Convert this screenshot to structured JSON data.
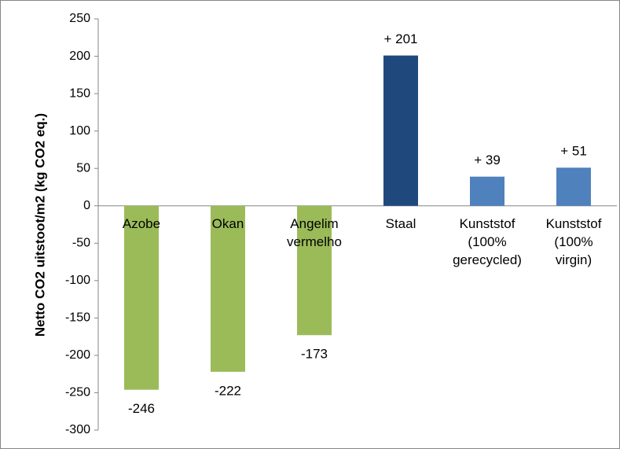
{
  "chart_data": {
    "type": "bar",
    "y_axis_label": "Netto CO2 uitstoot/m2  (kg CO2 eq.)",
    "categories": [
      [
        "Azobe"
      ],
      [
        "Okan"
      ],
      [
        "Angelim",
        "vermelho"
      ],
      [
        "Staal"
      ],
      [
        "Kunststof",
        "(100%",
        "gerecycled)"
      ],
      [
        "Kunststof",
        "(100%",
        "virgin)"
      ]
    ],
    "values": [
      -246,
      -222,
      -173,
      201,
      39,
      51
    ],
    "value_labels": [
      "-246",
      "-222",
      "-173",
      "+ 201",
      "+ 39",
      "+ 51"
    ],
    "colors": [
      "#9bbb59",
      "#9bbb59",
      "#9bbb59",
      "#1f497d",
      "#4f81bd",
      "#4f81bd"
    ],
    "ylim": [
      -300,
      250
    ],
    "yticks": [
      -300,
      -250,
      -200,
      -150,
      -100,
      -50,
      0,
      50,
      100,
      150,
      200,
      250
    ],
    "grid": false
  }
}
